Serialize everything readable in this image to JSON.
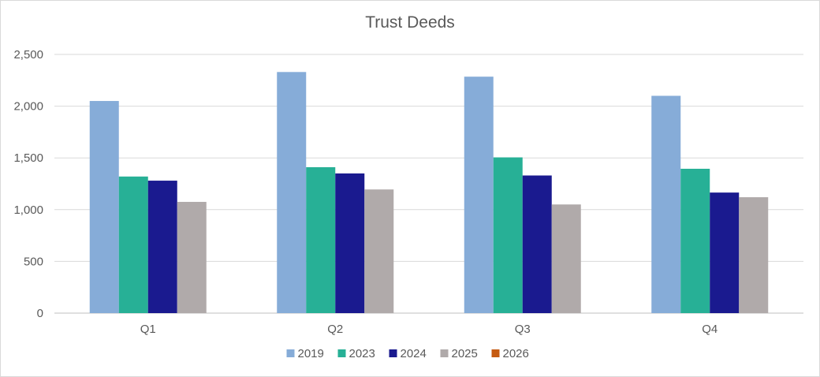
{
  "chart_data": {
    "type": "bar",
    "title": "Trust Deeds",
    "xlabel": "",
    "ylabel": "",
    "ylim": [
      0,
      2500
    ],
    "yticks": [
      0,
      500,
      1000,
      1500,
      2000,
      2500
    ],
    "ytick_labels": [
      "0",
      "500",
      "1,000",
      "1,500",
      "2,000",
      "2,500"
    ],
    "categories": [
      "Q1",
      "Q2",
      "Q3",
      "Q4"
    ],
    "grid": true,
    "legend_position": "bottom",
    "series": [
      {
        "name": "2019",
        "color": "#86ACD8",
        "values": [
          2050,
          2330,
          2285,
          2100
        ]
      },
      {
        "name": "2023",
        "color": "#27B096",
        "values": [
          1320,
          1410,
          1505,
          1395
        ]
      },
      {
        "name": "2024",
        "color": "#1A1A8F",
        "values": [
          1280,
          1350,
          1330,
          1165
        ]
      },
      {
        "name": "2025",
        "color": "#B0AAAA",
        "values": [
          1075,
          1195,
          1050,
          1120
        ]
      },
      {
        "name": "2026",
        "color": "#C55A11",
        "values": [
          null,
          null,
          null,
          null
        ]
      }
    ]
  }
}
